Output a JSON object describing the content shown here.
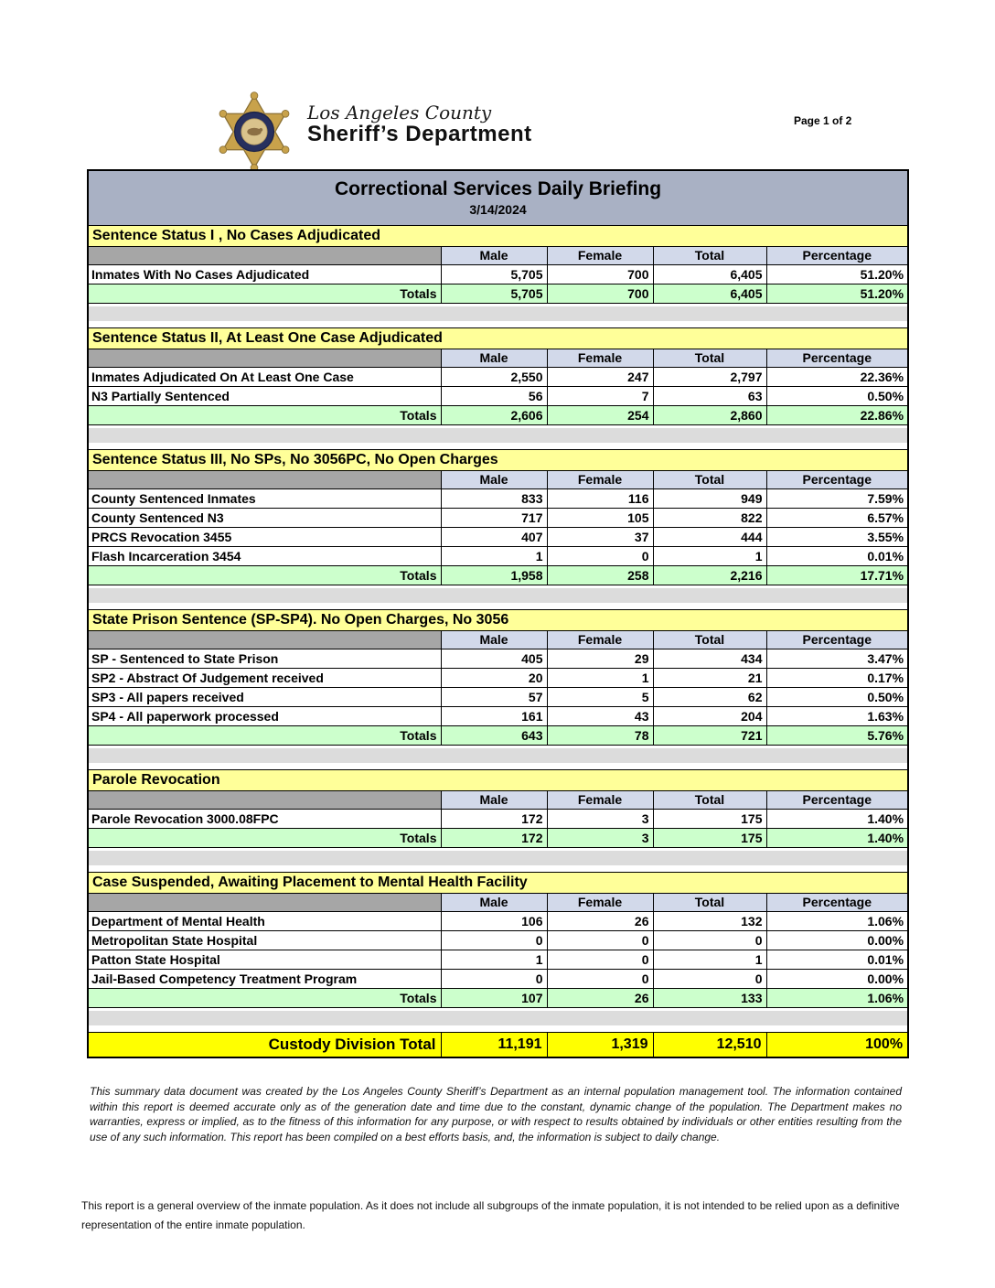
{
  "page": {
    "page_label": "Page 1 of 2"
  },
  "logo": {
    "icon": "sheriff-star-badge-icon",
    "line1": "Los Angeles County",
    "line2": "Sheriff’s Department",
    "registered_mark": "®"
  },
  "report": {
    "title": "Correctional Services Daily Briefing",
    "date": "3/14/2024",
    "columns": [
      "Male",
      "Female",
      "Total",
      "Percentage"
    ],
    "sections": [
      {
        "title": "Sentence Status I , No Cases Adjudicated",
        "rows": [
          {
            "label": "Inmates With No Cases Adjudicated",
            "male": "5,705",
            "female": "700",
            "total": "6,405",
            "pct": "51.20%"
          }
        ],
        "totals": {
          "label": "Totals",
          "male": "5,705",
          "female": "700",
          "total": "6,405",
          "pct": "51.20%"
        }
      },
      {
        "title": "Sentence Status II, At Least One Case Adjudicated",
        "rows": [
          {
            "label": "Inmates Adjudicated On At Least One Case",
            "male": "2,550",
            "female": "247",
            "total": "2,797",
            "pct": "22.36%"
          },
          {
            "label": "N3 Partially Sentenced",
            "male": "56",
            "female": "7",
            "total": "63",
            "pct": "0.50%"
          }
        ],
        "totals": {
          "label": "Totals",
          "male": "2,606",
          "female": "254",
          "total": "2,860",
          "pct": "22.86%"
        }
      },
      {
        "title": "Sentence Status III, No SPs, No 3056PC, No Open Charges",
        "rows": [
          {
            "label": "County Sentenced Inmates",
            "male": "833",
            "female": "116",
            "total": "949",
            "pct": "7.59%"
          },
          {
            "label": "County Sentenced N3",
            "male": "717",
            "female": "105",
            "total": "822",
            "pct": "6.57%"
          },
          {
            "label": "PRCS Revocation 3455",
            "male": "407",
            "female": "37",
            "total": "444",
            "pct": "3.55%"
          },
          {
            "label": "Flash Incarceration 3454",
            "male": "1",
            "female": "0",
            "total": "1",
            "pct": "0.01%"
          }
        ],
        "totals": {
          "label": "Totals",
          "male": "1,958",
          "female": "258",
          "total": "2,216",
          "pct": "17.71%"
        }
      },
      {
        "title": "State Prison Sentence (SP-SP4). No Open Charges, No 3056",
        "rows": [
          {
            "label": "SP - Sentenced to State Prison",
            "male": "405",
            "female": "29",
            "total": "434",
            "pct": "3.47%"
          },
          {
            "label": "SP2 - Abstract Of Judgement received",
            "male": "20",
            "female": "1",
            "total": "21",
            "pct": "0.17%"
          },
          {
            "label": "SP3 - All papers received",
            "male": "57",
            "female": "5",
            "total": "62",
            "pct": "0.50%"
          },
          {
            "label": "SP4 - All paperwork processed",
            "male": "161",
            "female": "43",
            "total": "204",
            "pct": "1.63%"
          }
        ],
        "totals": {
          "label": "Totals",
          "male": "643",
          "female": "78",
          "total": "721",
          "pct": "5.76%"
        }
      },
      {
        "title": "Parole Revocation",
        "rows": [
          {
            "label": "Parole Revocation 3000.08FPC",
            "male": "172",
            "female": "3",
            "total": "175",
            "pct": "1.40%"
          }
        ],
        "totals": {
          "label": "Totals",
          "male": "172",
          "female": "3",
          "total": "175",
          "pct": "1.40%"
        }
      },
      {
        "title": "Case Suspended, Awaiting Placement to Mental Health Facility",
        "rows": [
          {
            "label": "Department of Mental Health",
            "male": "106",
            "female": "26",
            "total": "132",
            "pct": "1.06%"
          },
          {
            "label": "Metropolitan State Hospital",
            "male": "0",
            "female": "0",
            "total": "0",
            "pct": "0.00%"
          },
          {
            "label": "Patton State Hospital",
            "male": "1",
            "female": "0",
            "total": "1",
            "pct": "0.01%"
          },
          {
            "label": "Jail-Based Competency Treatment Program",
            "male": "0",
            "female": "0",
            "total": "0",
            "pct": "0.00%"
          }
        ],
        "totals": {
          "label": "Totals",
          "male": "107",
          "female": "26",
          "total": "133",
          "pct": "1.06%"
        }
      }
    ],
    "grand_total": {
      "label": "Custody Division Total",
      "male": "11,191",
      "female": "1,319",
      "total": "12,510",
      "pct": "100%"
    }
  },
  "footers": {
    "disclaimer": "This summary data document was created by the Los Angeles County Sheriff’s Department as an internal population management tool.  The information contained within this report is deemed accurate only as of the generation date and time due to the constant, dynamic change of the population.  The Department makes no warranties, express or implied, as to the fitness of this information for any purpose, or with respect to results obtained by individuals or other entities resulting from the use of any such information.  This report has been compiled on a best efforts basis, and, the information is subject to daily change.",
    "note": "This report is a general overview of the inmate population.  As it does not include all subgroups of the inmate population, it is not intended to be relied upon as a definitive representation of the entire inmate population."
  },
  "colors": {
    "title_bar": "#A9B1C4",
    "section_header_yellow": "#FFFF99",
    "column_header_blue": "#D2D9EA",
    "totals_green": "#CCFFCC",
    "grand_total_yellow": "#FFFF00",
    "blank_header_gray": "#A6A6A6",
    "spacer_gray": "#DCDCDC",
    "badge_gold": "#C8A24B",
    "badge_navy": "#27305E"
  }
}
